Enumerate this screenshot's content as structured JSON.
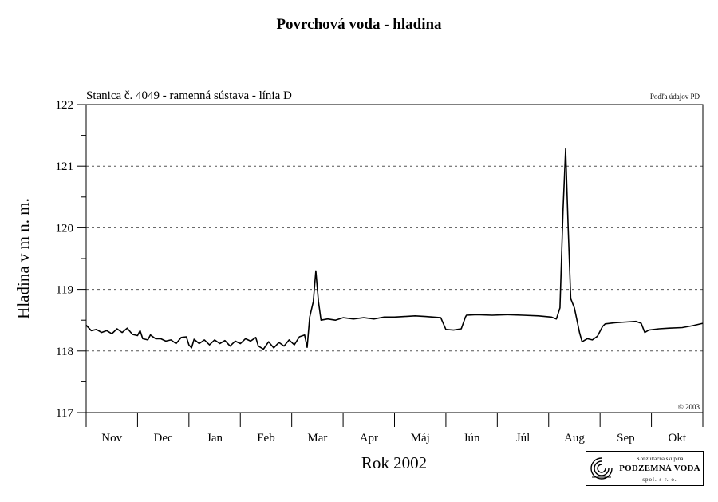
{
  "page": {
    "title": "Povrchová voda - hladina"
  },
  "chart_data": {
    "type": "line",
    "title": "Povrchová voda - hladina",
    "subtitle": "Stanica č. 4049 - ramenná sústava - línia D",
    "source_note": "Podľa údajov PD",
    "copyright": "© 2003",
    "xlabel": "Rok 2002",
    "ylabel": "Hladina v m n. m.",
    "ylim": [
      117,
      122
    ],
    "yticks": [
      "117",
      "118",
      "119",
      "120",
      "121",
      "122"
    ],
    "ygrid": [
      118,
      119,
      120,
      121
    ],
    "grid": "dashed horizontal",
    "months": [
      "Nov",
      "Dec",
      "Jan",
      "Feb",
      "Mar",
      "Apr",
      "Máj",
      "Jún",
      "Júl",
      "Aug",
      "Sep",
      "Okt"
    ],
    "x_range": [
      0,
      12
    ],
    "x_unit": "months from start of Nov 2001",
    "series": [
      {
        "points": [
          [
            0.0,
            118.42
          ],
          [
            0.1,
            118.33
          ],
          [
            0.2,
            118.35
          ],
          [
            0.3,
            118.3
          ],
          [
            0.4,
            118.33
          ],
          [
            0.5,
            118.28
          ],
          [
            0.6,
            118.36
          ],
          [
            0.7,
            118.3
          ],
          [
            0.8,
            118.37
          ],
          [
            0.9,
            118.27
          ],
          [
            1.0,
            118.25
          ],
          [
            1.05,
            118.33
          ],
          [
            1.1,
            118.2
          ],
          [
            1.2,
            118.18
          ],
          [
            1.25,
            118.26
          ],
          [
            1.35,
            118.2
          ],
          [
            1.45,
            118.2
          ],
          [
            1.55,
            118.16
          ],
          [
            1.65,
            118.18
          ],
          [
            1.75,
            118.12
          ],
          [
            1.85,
            118.22
          ],
          [
            1.95,
            118.23
          ],
          [
            2.0,
            118.1
          ],
          [
            2.05,
            118.05
          ],
          [
            2.1,
            118.19
          ],
          [
            2.2,
            118.12
          ],
          [
            2.3,
            118.18
          ],
          [
            2.4,
            118.1
          ],
          [
            2.5,
            118.18
          ],
          [
            2.6,
            118.12
          ],
          [
            2.7,
            118.17
          ],
          [
            2.8,
            118.08
          ],
          [
            2.9,
            118.16
          ],
          [
            3.0,
            118.12
          ],
          [
            3.1,
            118.2
          ],
          [
            3.2,
            118.16
          ],
          [
            3.3,
            118.22
          ],
          [
            3.35,
            118.08
          ],
          [
            3.45,
            118.03
          ],
          [
            3.55,
            118.15
          ],
          [
            3.65,
            118.05
          ],
          [
            3.75,
            118.14
          ],
          [
            3.85,
            118.08
          ],
          [
            3.95,
            118.18
          ],
          [
            4.05,
            118.1
          ],
          [
            4.15,
            118.23
          ],
          [
            4.25,
            118.26
          ],
          [
            4.3,
            118.06
          ],
          [
            4.35,
            118.55
          ],
          [
            4.42,
            118.8
          ],
          [
            4.47,
            119.3
          ],
          [
            4.52,
            118.8
          ],
          [
            4.57,
            118.5
          ],
          [
            4.7,
            118.52
          ],
          [
            4.85,
            118.5
          ],
          [
            5.0,
            118.54
          ],
          [
            5.2,
            118.52
          ],
          [
            5.4,
            118.54
          ],
          [
            5.6,
            118.52
          ],
          [
            5.8,
            118.55
          ],
          [
            6.0,
            118.55
          ],
          [
            6.2,
            118.56
          ],
          [
            6.4,
            118.57
          ],
          [
            6.6,
            118.56
          ],
          [
            6.9,
            118.54
          ],
          [
            7.0,
            118.35
          ],
          [
            7.15,
            118.34
          ],
          [
            7.3,
            118.36
          ],
          [
            7.38,
            118.55
          ],
          [
            7.4,
            118.58
          ],
          [
            7.6,
            118.59
          ],
          [
            7.9,
            118.58
          ],
          [
            8.2,
            118.59
          ],
          [
            8.5,
            118.58
          ],
          [
            8.8,
            118.57
          ],
          [
            9.05,
            118.55
          ],
          [
            9.15,
            118.52
          ],
          [
            9.22,
            118.7
          ],
          [
            9.28,
            120.3
          ],
          [
            9.33,
            121.28
          ],
          [
            9.38,
            120.0
          ],
          [
            9.43,
            118.85
          ],
          [
            9.5,
            118.7
          ],
          [
            9.6,
            118.3
          ],
          [
            9.65,
            118.15
          ],
          [
            9.75,
            118.2
          ],
          [
            9.85,
            118.18
          ],
          [
            9.95,
            118.24
          ],
          [
            10.05,
            118.4
          ],
          [
            10.1,
            118.44
          ],
          [
            10.3,
            118.46
          ],
          [
            10.5,
            118.47
          ],
          [
            10.7,
            118.48
          ],
          [
            10.8,
            118.45
          ],
          [
            10.87,
            118.3
          ],
          [
            10.95,
            118.34
          ],
          [
            11.15,
            118.36
          ],
          [
            11.35,
            118.37
          ],
          [
            11.6,
            118.38
          ],
          [
            11.8,
            118.41
          ],
          [
            12.0,
            118.45
          ]
        ]
      }
    ]
  },
  "logo": {
    "small_text": "Konzultačná skupina",
    "name": "PODZEMNÁ VODA",
    "sub_text": "spol. s r. o."
  },
  "colors": {
    "line": "#000000",
    "grid": "#555555",
    "background": "#ffffff"
  }
}
